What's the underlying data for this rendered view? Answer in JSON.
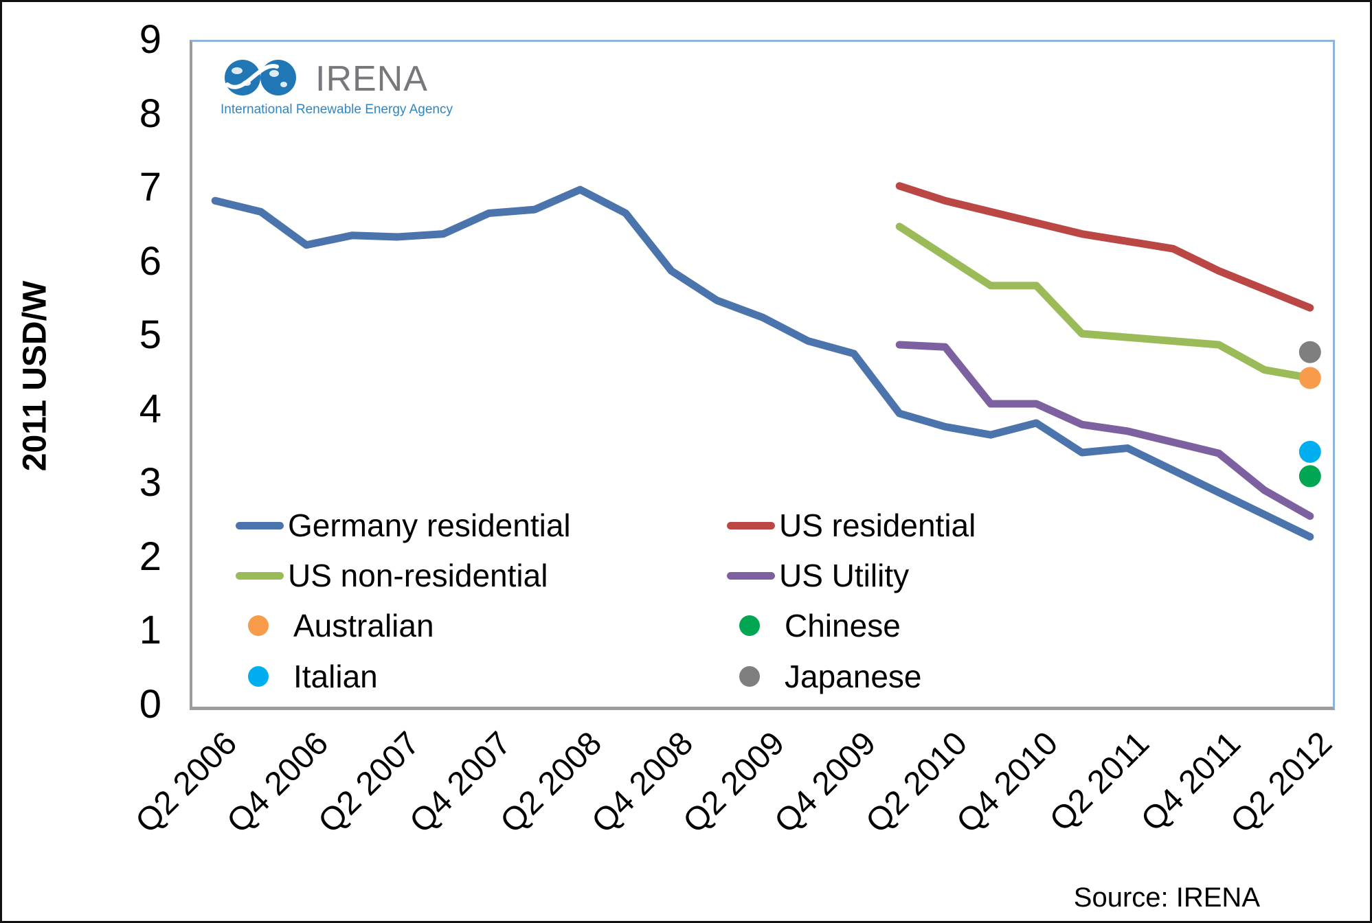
{
  "branding": {
    "logo_text": "IRENA",
    "tagline": "International Renewable Energy Agency"
  },
  "axes": {
    "y_title": "2011 USD/W",
    "y_min": 0,
    "y_max": 9,
    "y_ticks": [
      0,
      1,
      2,
      3,
      4,
      5,
      6,
      7,
      8,
      9
    ],
    "x_tick_labels": [
      "Q2 2006",
      "Q4 2006",
      "Q2 2007",
      "Q4 2007",
      "Q2 2008",
      "Q4 2008",
      "Q2 2009",
      "Q4 2009",
      "Q2 2010",
      "Q4 2010",
      "Q2 2011",
      "Q4 2011",
      "Q2 2012"
    ]
  },
  "source": {
    "label": "Source: IRENA"
  },
  "legend": {
    "entries": [
      {
        "label": "Germany residential",
        "type": "line",
        "color": "#4B74AC",
        "col": 0,
        "row": 0
      },
      {
        "label": "US residential",
        "type": "line",
        "color": "#BA4743",
        "col": 1,
        "row": 0
      },
      {
        "label": "US non-residential",
        "type": "line",
        "color": "#9BBB59",
        "col": 0,
        "row": 1
      },
      {
        "label": "US Utility",
        "type": "line",
        "color": "#7D60A0",
        "col": 1,
        "row": 1
      },
      {
        "label": "Australian",
        "type": "dot",
        "color": "#F89B4B",
        "col": 0,
        "row": 2
      },
      {
        "label": "Chinese",
        "type": "dot",
        "color": "#00A651",
        "col": 1,
        "row": 2
      },
      {
        "label": "Italian",
        "type": "dot",
        "color": "#00AEEF",
        "col": 0,
        "row": 3
      },
      {
        "label": "Japanese",
        "type": "dot",
        "color": "#7F7F7F",
        "col": 1,
        "row": 3
      }
    ]
  },
  "chart_data": {
    "type": "line",
    "title": "",
    "xlabel": "",
    "ylabel": "2011 USD/W",
    "ylim": [
      0,
      9
    ],
    "grid": false,
    "legend_position": "inside bottom-left",
    "categories": [
      "Q2 2006",
      "Q3 2006",
      "Q4 2006",
      "Q1 2007",
      "Q2 2007",
      "Q3 2007",
      "Q4 2007",
      "Q1 2008",
      "Q2 2008",
      "Q3 2008",
      "Q4 2008",
      "Q1 2009",
      "Q2 2009",
      "Q3 2009",
      "Q4 2009",
      "Q1 2010",
      "Q2 2010",
      "Q3 2010",
      "Q4 2010",
      "Q1 2011",
      "Q2 2011",
      "Q3 2011",
      "Q4 2011",
      "Q1 2012",
      "Q2 2012"
    ],
    "series": [
      {
        "name": "Germany residential",
        "color": "#4B74AC",
        "start_index": 0,
        "values": [
          6.85,
          6.7,
          6.25,
          6.38,
          6.36,
          6.4,
          6.68,
          6.73,
          7.0,
          6.68,
          5.9,
          5.5,
          5.27,
          4.95,
          4.78,
          3.97,
          3.79,
          3.68,
          3.84,
          3.44,
          3.5,
          3.2,
          2.9,
          2.6,
          2.3
        ]
      },
      {
        "name": "US residential",
        "color": "#BA4743",
        "start_index": 15,
        "values": [
          7.05,
          6.85,
          6.7,
          6.55,
          6.4,
          6.3,
          6.2,
          5.9,
          5.65,
          5.4
        ]
      },
      {
        "name": "US non-residential",
        "color": "#9BBB59",
        "start_index": 15,
        "values": [
          6.5,
          6.1,
          5.7,
          5.7,
          5.05,
          5.0,
          4.95,
          4.9,
          4.56,
          4.45
        ]
      },
      {
        "name": "US Utility",
        "color": "#7D60A0",
        "start_index": 15,
        "values": [
          4.9,
          4.87,
          4.1,
          4.1,
          3.82,
          3.73,
          3.58,
          3.43,
          2.93,
          2.58
        ]
      }
    ],
    "points": [
      {
        "name": "Japanese",
        "color": "#7F7F7F",
        "category": "Q2 2012",
        "value": 4.8
      },
      {
        "name": "Australian",
        "color": "#F89B4B",
        "category": "Q2 2012",
        "value": 4.45
      },
      {
        "name": "Italian",
        "color": "#00AEEF",
        "category": "Q2 2012",
        "value": 3.45
      },
      {
        "name": "Chinese",
        "color": "#00A651",
        "category": "Q2 2012",
        "value": 3.12
      }
    ]
  }
}
